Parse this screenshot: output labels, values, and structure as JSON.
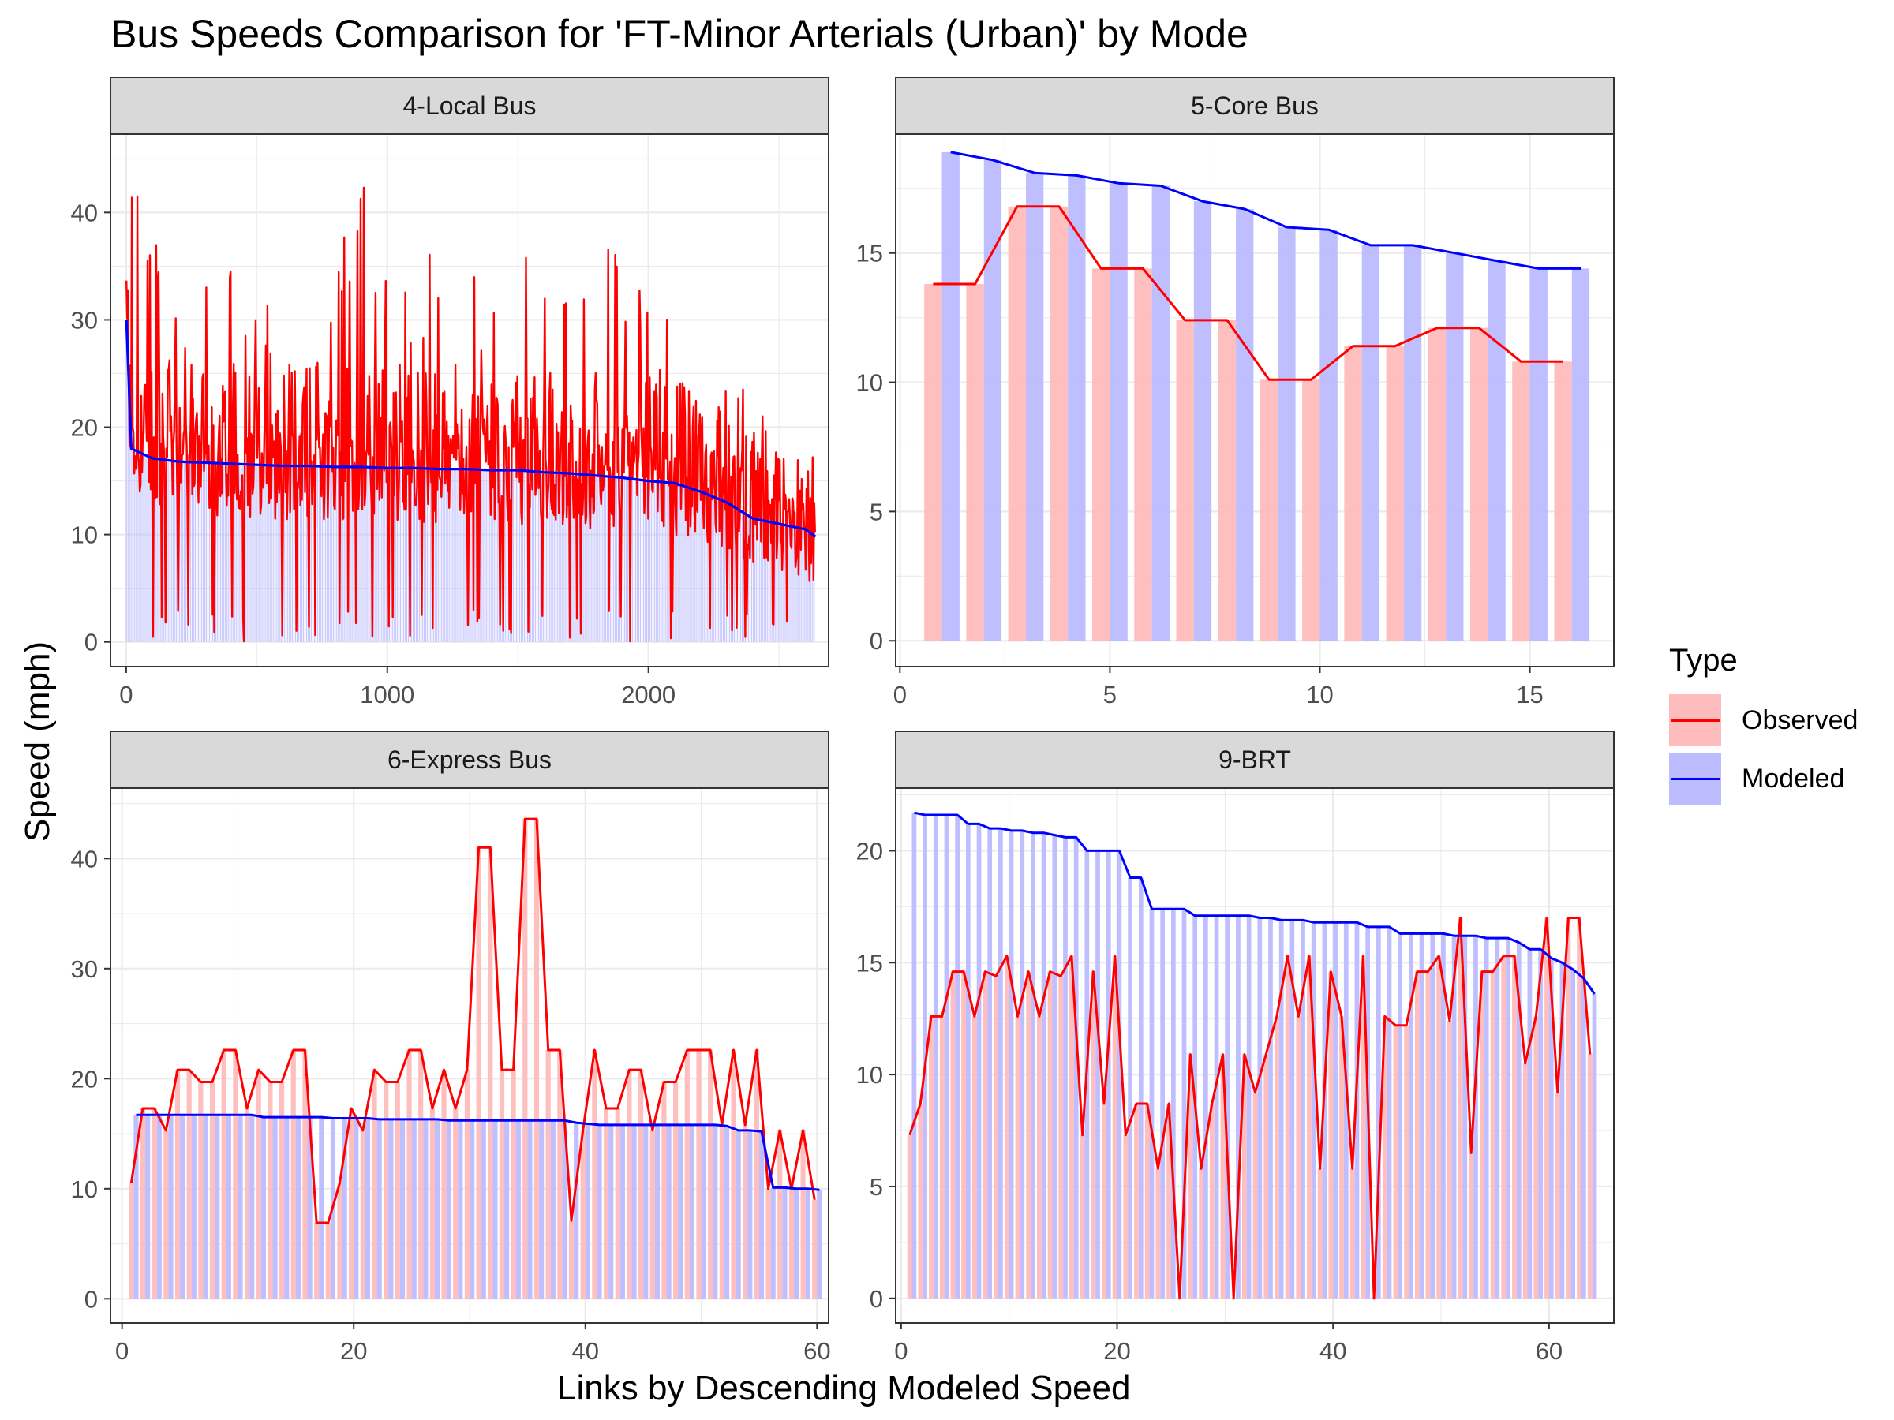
{
  "title": "Bus Speeds Comparison for 'FT-Minor Arterials (Urban)' by Mode",
  "xlabel": "Links by Descending Modeled Speed",
  "ylabel": "Speed (mph)",
  "legend": {
    "title": "Type",
    "items": [
      {
        "label": "Observed",
        "line_color": "#ff0000",
        "fill_color": "#ffbcbc"
      },
      {
        "label": "Modeled",
        "line_color": "#0000ff",
        "fill_color": "#bcbcff"
      }
    ]
  },
  "colors": {
    "observed_line": "#ff0000",
    "observed_bar": "#ffbcbc",
    "modeled_line": "#0000ff",
    "modeled_bar": "#bcbcff",
    "strip_bg": "#d9d9d9",
    "grid": "#ebebeb"
  },
  "chart_data": [
    {
      "type": "bar+line",
      "panel": "4-Local Bus",
      "xlim": [
        -60,
        2690
      ],
      "ylim": [
        -2.3,
        47.3
      ],
      "xticks": [
        0,
        1000,
        2000
      ],
      "yticks": [
        0,
        10,
        20,
        30,
        40
      ],
      "grid": true,
      "description_values": "approx. 2640 links; modeled speeds sorted descending; observed values sampled",
      "x": [
        1,
        20,
        100,
        200,
        300,
        400,
        500,
        600,
        700,
        800,
        900,
        1000,
        1100,
        1200,
        1300,
        1400,
        1500,
        1600,
        1700,
        1800,
        1900,
        2000,
        2100,
        2200,
        2300,
        2400,
        2500,
        2600,
        2640
      ],
      "modeled": [
        30,
        18,
        17.1,
        16.8,
        16.7,
        16.6,
        16.5,
        16.4,
        16.4,
        16.3,
        16.3,
        16.2,
        16.2,
        16.1,
        16.1,
        16.0,
        16.0,
        15.8,
        15.7,
        15.5,
        15.3,
        15.0,
        14.8,
        14.0,
        13.0,
        11.5,
        11.0,
        10.5,
        9.8
      ],
      "observed": [
        30,
        42,
        43,
        35,
        38,
        40,
        36,
        33,
        35,
        39,
        45,
        34,
        37,
        38,
        36,
        35,
        40,
        36,
        36,
        35,
        39,
        31,
        30,
        25,
        27,
        24,
        26,
        20,
        17
      ]
    },
    {
      "type": "bar+line",
      "panel": "5-Core Bus",
      "xlim": [
        -0.1,
        17.0
      ],
      "ylim": [
        -1.0,
        19.6
      ],
      "xticks": [
        0,
        5,
        10,
        15
      ],
      "yticks": [
        0,
        5,
        10,
        15
      ],
      "grid": true,
      "x": [
        1,
        2,
        3,
        4,
        5,
        6,
        7,
        8,
        9,
        10,
        11,
        12,
        13,
        14,
        15,
        16
      ],
      "observed": [
        13.8,
        13.8,
        16.8,
        16.8,
        14.4,
        14.4,
        12.4,
        12.4,
        10.1,
        10.1,
        11.4,
        11.4,
        12.1,
        12.1,
        10.8,
        10.8
      ],
      "modeled": [
        18.9,
        18.6,
        18.1,
        18.0,
        17.7,
        17.6,
        17.0,
        16.7,
        16.0,
        15.9,
        15.3,
        15.3,
        15.0,
        14.7,
        14.4,
        14.4
      ]
    },
    {
      "type": "bar+line",
      "panel": "6-Express Bus",
      "xlim": [
        -1.0,
        61.0
      ],
      "ylim": [
        -2.2,
        46.4
      ],
      "xticks": [
        0,
        20,
        40,
        60
      ],
      "yticks": [
        0,
        10,
        20,
        30,
        40
      ],
      "grid": true,
      "x": [
        1,
        2,
        3,
        4,
        5,
        6,
        7,
        8,
        9,
        10,
        11,
        12,
        13,
        14,
        15,
        16,
        17,
        18,
        19,
        20,
        21,
        22,
        23,
        24,
        25,
        26,
        27,
        28,
        29,
        30,
        31,
        32,
        33,
        34,
        35,
        36,
        37,
        38,
        39,
        40,
        41,
        42,
        43,
        44,
        45,
        46,
        47,
        48,
        49,
        50,
        51,
        52,
        53,
        54,
        55,
        56,
        57,
        58,
        59,
        60
      ],
      "observed": [
        10.5,
        17.3,
        17.3,
        15.3,
        20.8,
        20.8,
        19.7,
        19.7,
        22.6,
        22.6,
        17.3,
        20.8,
        19.7,
        19.7,
        22.6,
        22.6,
        6.9,
        6.9,
        10.5,
        17.3,
        15.3,
        20.8,
        19.7,
        19.7,
        22.6,
        22.6,
        17.3,
        20.8,
        17.3,
        20.8,
        41.0,
        41.0,
        20.8,
        20.8,
        43.6,
        43.6,
        22.6,
        22.6,
        7.1,
        15.3,
        22.6,
        17.3,
        17.3,
        20.8,
        20.8,
        15.3,
        19.7,
        19.7,
        22.6,
        22.6,
        22.6,
        15.8,
        22.6,
        15.8,
        22.6,
        10.0,
        15.3,
        10.0,
        15.3,
        9.0
      ],
      "modeled": [
        16.7,
        16.7,
        16.7,
        16.7,
        16.7,
        16.7,
        16.7,
        16.7,
        16.7,
        16.7,
        16.7,
        16.5,
        16.5,
        16.5,
        16.5,
        16.5,
        16.5,
        16.4,
        16.4,
        16.4,
        16.4,
        16.3,
        16.3,
        16.3,
        16.3,
        16.3,
        16.3,
        16.2,
        16.2,
        16.2,
        16.2,
        16.2,
        16.2,
        16.2,
        16.2,
        16.2,
        16.2,
        16.2,
        16.0,
        15.9,
        15.8,
        15.8,
        15.8,
        15.8,
        15.8,
        15.8,
        15.8,
        15.8,
        15.8,
        15.8,
        15.8,
        15.7,
        15.3,
        15.3,
        15.2,
        10.1,
        10.1,
        10.0,
        10.0,
        9.9
      ]
    },
    {
      "type": "bar+line",
      "panel": "9-BRT",
      "xlim": [
        -0.5,
        66.0
      ],
      "ylim": [
        -1.1,
        22.8
      ],
      "xticks": [
        0,
        20,
        40,
        60
      ],
      "yticks": [
        0,
        5,
        10,
        15,
        20
      ],
      "grid": true,
      "x": [
        1,
        2,
        3,
        4,
        5,
        6,
        7,
        8,
        9,
        10,
        11,
        12,
        13,
        14,
        15,
        16,
        17,
        18,
        19,
        20,
        21,
        22,
        23,
        24,
        25,
        26,
        27,
        28,
        29,
        30,
        31,
        32,
        33,
        34,
        35,
        36,
        37,
        38,
        39,
        40,
        41,
        42,
        43,
        44,
        45,
        46,
        47,
        48,
        49,
        50,
        51,
        52,
        53,
        54,
        55,
        56,
        57,
        58,
        59,
        60,
        61,
        62,
        63,
        64
      ],
      "observed": [
        7.3,
        8.7,
        12.6,
        12.6,
        14.6,
        14.6,
        12.6,
        14.6,
        14.4,
        15.3,
        12.6,
        14.6,
        12.6,
        14.6,
        14.4,
        15.3,
        7.3,
        14.6,
        8.7,
        15.3,
        7.3,
        8.7,
        8.7,
        5.8,
        8.7,
        0.0,
        10.9,
        5.8,
        8.7,
        10.9,
        0.0,
        10.9,
        9.2,
        10.9,
        12.6,
        15.3,
        12.6,
        15.3,
        5.8,
        14.6,
        12.6,
        5.8,
        15.3,
        0.0,
        12.6,
        12.2,
        12.2,
        14.6,
        14.6,
        15.3,
        12.4,
        17.0,
        6.5,
        14.6,
        14.6,
        15.3,
        15.3,
        10.5,
        12.6,
        17.0,
        9.2,
        17.0,
        17.0,
        10.9
      ],
      "modeled": [
        21.7,
        21.6,
        21.6,
        21.6,
        21.6,
        21.2,
        21.2,
        21.0,
        21.0,
        20.9,
        20.9,
        20.8,
        20.8,
        20.7,
        20.6,
        20.6,
        20.0,
        20.0,
        20.0,
        20.0,
        18.8,
        18.8,
        17.4,
        17.4,
        17.4,
        17.4,
        17.1,
        17.1,
        17.1,
        17.1,
        17.1,
        17.1,
        17.0,
        17.0,
        16.9,
        16.9,
        16.9,
        16.8,
        16.8,
        16.8,
        16.8,
        16.8,
        16.6,
        16.6,
        16.6,
        16.3,
        16.3,
        16.3,
        16.3,
        16.3,
        16.2,
        16.2,
        16.2,
        16.1,
        16.1,
        16.1,
        15.9,
        15.6,
        15.6,
        15.2,
        15.0,
        14.7,
        14.3,
        13.6
      ]
    }
  ],
  "panels_meta": [
    {
      "strip": "4-Local Bus"
    },
    {
      "strip": "5-Core Bus"
    },
    {
      "strip": "6-Express Bus"
    },
    {
      "strip": "9-BRT"
    }
  ]
}
